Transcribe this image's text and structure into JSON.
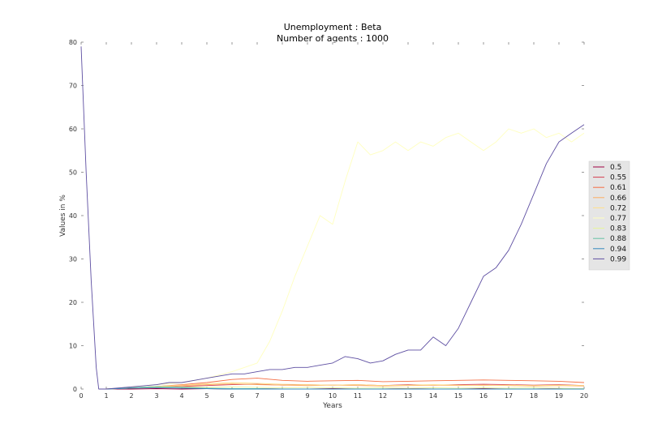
{
  "chart_data": {
    "type": "line",
    "title": "Unemployment : Beta",
    "subtitle": "Number of agents : 1000",
    "xlabel": "Years",
    "ylabel": "Values in %",
    "xlim": [
      0,
      20
    ],
    "ylim": [
      0,
      80
    ],
    "xticks": [
      0,
      1,
      2,
      3,
      4,
      5,
      6,
      7,
      8,
      9,
      10,
      11,
      12,
      13,
      14,
      15,
      16,
      17,
      18,
      19,
      20
    ],
    "yticks": [
      0,
      10,
      20,
      30,
      40,
      50,
      60,
      70,
      80
    ],
    "grid": false,
    "legend_position": "right",
    "series": [
      {
        "name": "0.5",
        "color": "#9e0142",
        "x": [
          1,
          2,
          3,
          4,
          5,
          6,
          7,
          8,
          9,
          10,
          11,
          12,
          13,
          14,
          15,
          16,
          17,
          18,
          19,
          20
        ],
        "y": [
          0,
          0,
          0.1,
          0,
          0.1,
          0,
          0.1,
          0,
          0,
          0.1,
          0,
          0,
          0.1,
          0,
          0,
          0.1,
          0,
          0,
          0.1,
          0
        ]
      },
      {
        "name": "0.55",
        "color": "#d53e4f",
        "x": [
          1,
          2,
          3,
          4,
          5,
          6,
          7,
          8,
          9,
          10,
          11,
          12,
          13,
          14,
          15,
          16,
          17,
          18,
          19,
          20
        ],
        "y": [
          0,
          0.2,
          0.4,
          0.6,
          0.8,
          1.0,
          1.1,
          0.9,
          1.0,
          0.9,
          1.0,
          0.8,
          1.0,
          0.9,
          1.0,
          1.1,
          1.0,
          0.9,
          1.0,
          0.8
        ]
      },
      {
        "name": "0.61",
        "color": "#f46d43",
        "x": [
          1,
          2,
          3,
          4,
          5,
          6,
          7,
          8,
          9,
          10,
          11,
          12,
          13,
          14,
          15,
          16,
          17,
          18,
          19,
          20
        ],
        "y": [
          0,
          0.3,
          0.6,
          1.0,
          1.5,
          2.2,
          2.5,
          2.0,
          1.8,
          1.9,
          2.0,
          1.7,
          1.8,
          1.9,
          2.0,
          2.1,
          2.0,
          1.9,
          1.8,
          1.5
        ]
      },
      {
        "name": "0.66",
        "color": "#fdae61",
        "x": [
          1,
          2,
          3,
          4,
          5,
          6,
          7,
          8,
          9,
          10,
          11,
          12,
          13,
          14,
          15,
          16,
          17,
          18,
          19,
          20
        ],
        "y": [
          0,
          0.2,
          0.5,
          0.8,
          1.0,
          1.2,
          1.0,
          0.9,
          0.8,
          0.9,
          0.8,
          0.7,
          0.8,
          0.9,
          0.8,
          0.9,
          0.8,
          0.7,
          0.8,
          0.7
        ]
      },
      {
        "name": "0.72",
        "color": "#fee08b",
        "x": [
          1,
          2,
          3,
          4,
          5,
          6,
          7,
          8,
          9,
          10,
          11,
          12,
          13,
          14,
          15,
          16,
          17,
          18,
          19,
          20
        ],
        "y": [
          0,
          0.3,
          0.6,
          0.9,
          1.2,
          1.5,
          1.3,
          1.1,
          1.0,
          0.9,
          1.0,
          0.8,
          0.9,
          1.0,
          0.9,
          0.8,
          0.9,
          0.8,
          0.9,
          0.8
        ]
      },
      {
        "name": "0.77",
        "color": "#ffffbf",
        "x": [
          1,
          2,
          3,
          4,
          5,
          6,
          6.5,
          7,
          7.5,
          8,
          8.5,
          9,
          9.5,
          10,
          10.5,
          11,
          11.5,
          12,
          12.5,
          13,
          13.5,
          14,
          14.5,
          15,
          15.5,
          16,
          16.5,
          17,
          17.5,
          18,
          18.5,
          19,
          19.5,
          20
        ],
        "y": [
          0,
          0.5,
          1.0,
          1.5,
          2.5,
          4.0,
          5.0,
          6.0,
          11,
          18,
          26,
          33,
          40,
          38,
          48,
          57,
          54,
          55,
          57,
          55,
          57,
          56,
          58,
          59,
          57,
          55,
          57,
          60,
          59,
          60,
          58,
          59,
          57,
          59
        ]
      },
      {
        "name": "0.83",
        "color": "#e6f598",
        "x": [
          1,
          2,
          3,
          4,
          5,
          6,
          7,
          8,
          9,
          10,
          11,
          12,
          13,
          14,
          15,
          16,
          17,
          18,
          19,
          20
        ],
        "y": [
          0,
          0.2,
          0.4,
          0.5,
          0.4,
          0.5,
          0.4,
          0.3,
          0.4,
          0.3,
          0.2,
          0.3,
          0.2,
          0.3,
          0.2,
          0.3,
          0.2,
          0.3,
          0.2,
          0.1
        ]
      },
      {
        "name": "0.88",
        "color": "#66c2a5",
        "x": [
          1,
          2,
          3,
          4,
          5,
          6,
          7,
          8,
          9,
          10,
          11,
          12,
          13,
          14,
          15,
          16,
          17,
          18,
          19,
          20
        ],
        "y": [
          0,
          0.3,
          0.6,
          0.4,
          0.2,
          0.1,
          0.1,
          0,
          0,
          0,
          0,
          0,
          0,
          0,
          0,
          0,
          0,
          0,
          0,
          0
        ]
      },
      {
        "name": "0.94",
        "color": "#3288bd",
        "x": [
          1,
          2,
          3,
          4,
          5,
          6,
          7,
          8,
          9,
          10,
          11,
          12,
          13,
          14,
          15,
          16,
          17,
          18,
          19,
          20
        ],
        "y": [
          0,
          0.2,
          0.3,
          0.2,
          0.1,
          0,
          0,
          0,
          0,
          0,
          0,
          0,
          0,
          0,
          0,
          0,
          0,
          0,
          0,
          0
        ]
      },
      {
        "name": "0.99",
        "color": "#5e4fa2",
        "x": [
          0,
          0.2,
          0.4,
          0.6,
          0.7,
          1,
          2,
          3,
          3.5,
          4,
          4.5,
          5,
          5.5,
          6,
          6.5,
          7,
          7.5,
          8,
          8.5,
          9,
          9.5,
          10,
          10.5,
          11,
          11.5,
          12,
          12.5,
          13,
          13.5,
          14,
          14.5,
          15,
          15.5,
          16,
          16.5,
          17,
          17.5,
          18,
          18.5,
          19,
          19.5,
          20
        ],
        "y": [
          79,
          50,
          25,
          5,
          0,
          0,
          0.5,
          1.0,
          1.5,
          1.5,
          2.0,
          2.5,
          3.0,
          3.5,
          3.5,
          4.0,
          4.5,
          4.5,
          5.0,
          5.0,
          5.5,
          6.0,
          7.5,
          7.0,
          6.0,
          6.5,
          8.0,
          9.0,
          9.0,
          12,
          10,
          14,
          20,
          26,
          28,
          32,
          38,
          45,
          52,
          57,
          59,
          61
        ]
      }
    ]
  }
}
